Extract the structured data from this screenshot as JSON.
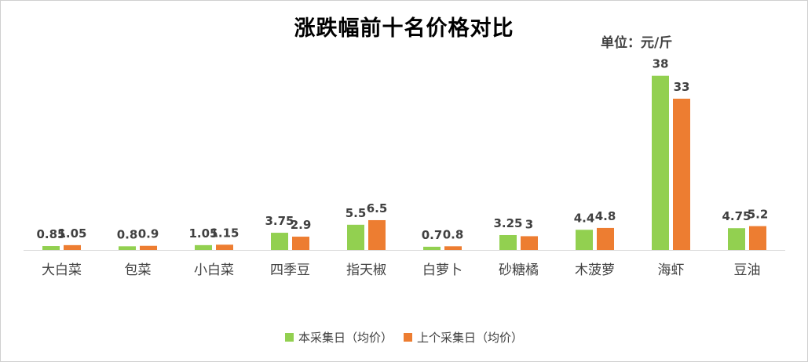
{
  "chart_data": {
    "type": "bar",
    "title": "涨跌幅前十名价格对比",
    "unit_label": "单位：元/斤",
    "categories": [
      "大白菜",
      "包菜",
      "小白菜",
      "四季豆",
      "指天椒",
      "白萝卜",
      "砂糖橘",
      "木菠萝",
      "海虾",
      "豆油"
    ],
    "series": [
      {
        "name": "本采集日（均价）",
        "color": "#92d050",
        "values": [
          0.85,
          0.8,
          1.05,
          3.75,
          5.5,
          0.7,
          3.25,
          4.4,
          38,
          4.75
        ],
        "labels": [
          "0.85",
          "0.8",
          "1.05",
          "3.75",
          "5.5",
          "0.7",
          "3.25",
          "4.4",
          "38",
          "4.75"
        ]
      },
      {
        "name": "上个采集日（均价）",
        "color": "#ed7d31",
        "values": [
          1.05,
          0.9,
          1.15,
          2.9,
          6.5,
          0.8,
          3,
          4.8,
          33,
          5.2
        ],
        "labels": [
          "1.05",
          "0.9",
          "1.15",
          "2.9",
          "6.5",
          "0.8",
          "3",
          "4.8",
          "33",
          "5.2"
        ]
      }
    ],
    "ylim": [
      0,
      40
    ],
    "grid": false,
    "legend": "bottom"
  }
}
